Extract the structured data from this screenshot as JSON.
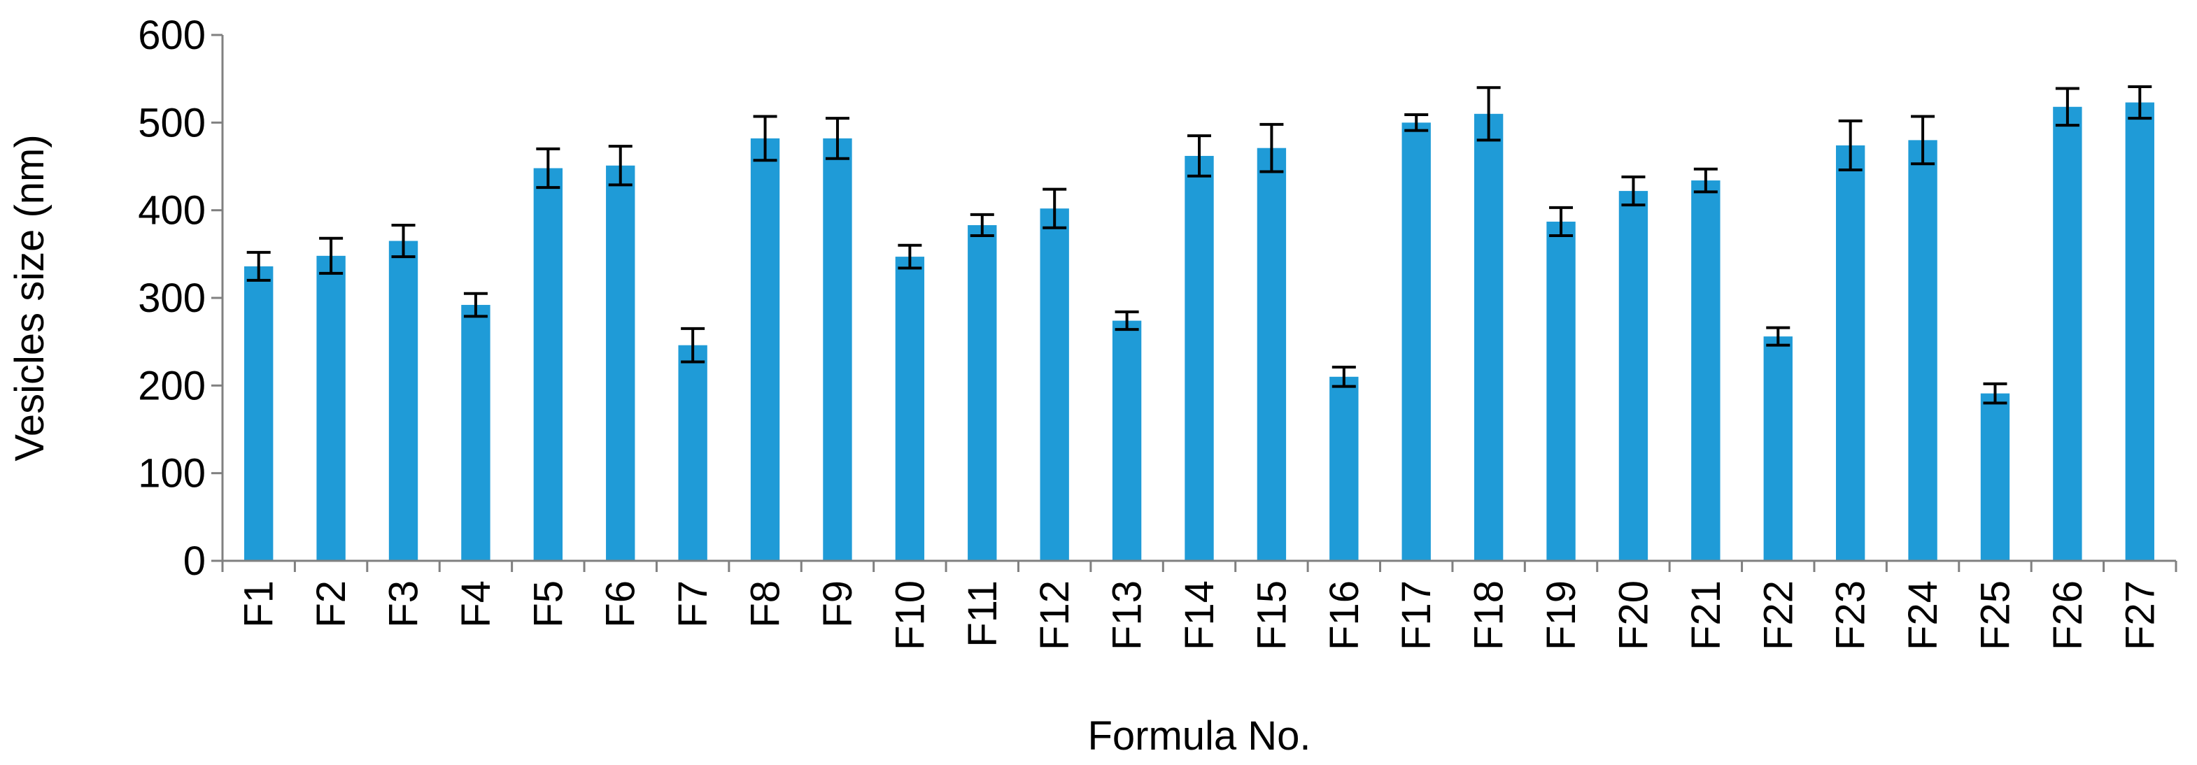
{
  "chart_data": {
    "type": "bar",
    "title": "",
    "xlabel": "Formula No.",
    "ylabel": "Vesicles size (nm)",
    "ylim": [
      0,
      600
    ],
    "yticks": [
      0,
      100,
      200,
      300,
      400,
      500,
      600
    ],
    "grid": false,
    "legend": "none",
    "bar_color": "#1f9bd7",
    "categories": [
      "F1",
      "F2",
      "F3",
      "F4",
      "F5",
      "F6",
      "F7",
      "F8",
      "F9",
      "F10",
      "F11",
      "F12",
      "F13",
      "F14",
      "F15",
      "F16",
      "F17",
      "F18",
      "F19",
      "F20",
      "F21",
      "F22",
      "F23",
      "F24",
      "F25",
      "F26",
      "F27"
    ],
    "values": [
      336,
      348,
      365,
      292,
      448,
      451,
      246,
      482,
      482,
      347,
      383,
      402,
      274,
      462,
      471,
      210,
      500,
      510,
      387,
      422,
      434,
      256,
      474,
      480,
      191,
      518,
      523
    ],
    "error": [
      16,
      20,
      18,
      13,
      22,
      22,
      19,
      25,
      23,
      13,
      12,
      22,
      10,
      23,
      27,
      11,
      9,
      30,
      16,
      16,
      13,
      10,
      28,
      27,
      11,
      21,
      18
    ]
  }
}
